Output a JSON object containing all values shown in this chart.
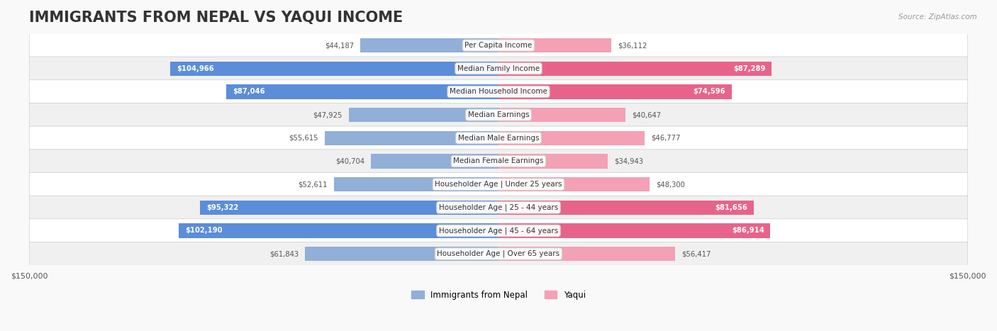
{
  "title": "IMMIGRANTS FROM NEPAL VS YAQUI INCOME",
  "source": "Source: ZipAtlas.com",
  "categories": [
    "Per Capita Income",
    "Median Family Income",
    "Median Household Income",
    "Median Earnings",
    "Median Male Earnings",
    "Median Female Earnings",
    "Householder Age | Under 25 years",
    "Householder Age | 25 - 44 years",
    "Householder Age | 45 - 64 years",
    "Householder Age | Over 65 years"
  ],
  "nepal_values": [
    44187,
    104966,
    87046,
    47925,
    55615,
    40704,
    52611,
    95322,
    102190,
    61843
  ],
  "yaqui_values": [
    36112,
    87289,
    74596,
    40647,
    46777,
    34943,
    48300,
    81656,
    86914,
    56417
  ],
  "nepal_labels": [
    "$44,187",
    "$104,966",
    "$87,046",
    "$47,925",
    "$55,615",
    "$40,704",
    "$52,611",
    "$95,322",
    "$102,190",
    "$61,843"
  ],
  "yaqui_labels": [
    "$36,112",
    "$87,289",
    "$74,596",
    "$40,647",
    "$46,777",
    "$34,943",
    "$48,300",
    "$81,656",
    "$86,914",
    "$56,417"
  ],
  "nepal_color": "#92afd7",
  "nepal_color_dark": "#5b8dd9",
  "yaqui_color": "#f4a0b5",
  "yaqui_color_dark": "#e8638a",
  "max_value": 150000,
  "background_color": "#f5f5f5",
  "bar_background": "#e8e8e8",
  "row_bg_color": "#eeeeee",
  "title_fontsize": 15,
  "label_fontsize": 8.5,
  "nepal_large_threshold": 80000,
  "yaqui_large_threshold": 70000
}
